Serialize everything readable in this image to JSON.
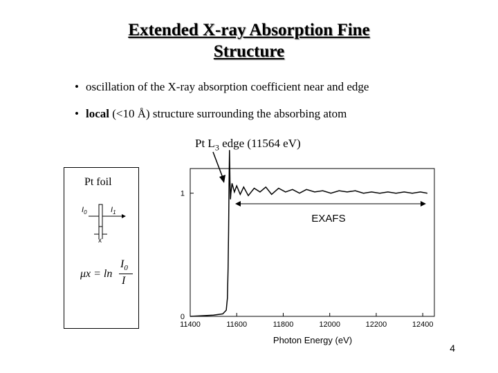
{
  "slide": {
    "title_line1": "Extended X-ray Absorption Fine",
    "title_line2": "Structure",
    "bullets": [
      {
        "bold": "",
        "text": "oscillation of the X-ray absorption coefficient near and edge"
      },
      {
        "bold": "local",
        "text": " (<10 Å) structure surrounding the absorbing atom"
      }
    ],
    "edge_label_pre": "Pt L",
    "edge_label_sub": "3",
    "edge_label_post": " edge (11564 eV)",
    "page_number": "4"
  },
  "inset": {
    "title": "Pt foil",
    "i0": "I",
    "i0_sub": "0",
    "i1": "I",
    "i1_sub": "1",
    "x_label": "x",
    "formula_lhs": "μx = ln",
    "formula_num": "I",
    "formula_num_sub": "0",
    "formula_den": "I"
  },
  "chart_data": {
    "type": "line",
    "xlabel": "Photon Energy (eV)",
    "ylabel": "",
    "xlim": [
      11400,
      12450
    ],
    "ylim": [
      0,
      1.2
    ],
    "x_ticks": [
      11400,
      11600,
      11800,
      12000,
      12200,
      12400
    ],
    "y_ticks": [
      0,
      1
    ],
    "annotation": "EXAFS",
    "series": [
      {
        "x": [
          11400,
          11500,
          11540,
          11555,
          11560,
          11563,
          11565,
          11567,
          11569,
          11571,
          11573,
          11575,
          11580,
          11590,
          11600,
          11615,
          11630,
          11650,
          11675,
          11700,
          11725,
          11750,
          11780,
          11810,
          11840,
          11870,
          11900,
          11935,
          11970,
          12005,
          12040,
          12075,
          12110,
          12145,
          12180,
          12215,
          12250,
          12285,
          12320,
          12355,
          12390,
          12420
        ],
        "y": [
          0.0,
          0.01,
          0.02,
          0.05,
          0.15,
          0.4,
          0.7,
          1.05,
          1.35,
          1.1,
          0.95,
          1.0,
          1.08,
          1.01,
          1.06,
          0.99,
          1.05,
          0.98,
          1.04,
          1.01,
          1.05,
          0.99,
          1.04,
          1.01,
          1.03,
          1.0,
          1.03,
          1.01,
          1.02,
          1.0,
          1.02,
          1.01,
          1.02,
          1.0,
          1.01,
          1.0,
          1.01,
          1.0,
          1.01,
          1.0,
          1.01,
          1.0
        ]
      }
    ]
  }
}
